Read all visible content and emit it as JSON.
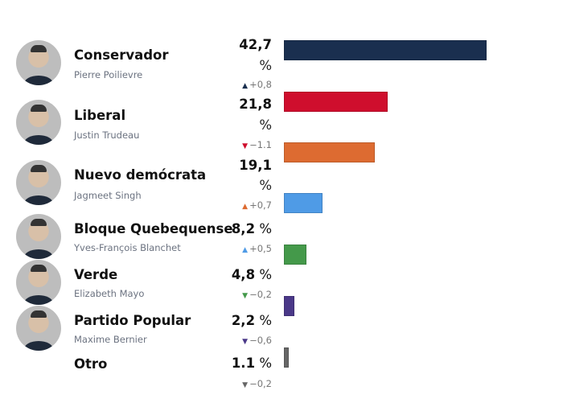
{
  "chart_data": {
    "type": "bar",
    "orientation": "horizontal",
    "unit": "%",
    "categories": [
      "Conservador",
      "Liberal",
      "Nuevo demócrata",
      "Bloque Quebequense",
      "Verde",
      "Partido Popular",
      "Otro"
    ],
    "rows": [
      {
        "party": "Conservador",
        "leader": "Pierre Poilievre",
        "value": 42.7,
        "value_label": "42,7",
        "change": "+0,8",
        "direction": "up",
        "color": "#1a2f4f"
      },
      {
        "party": "Liberal",
        "leader": "Justin Trudeau",
        "value": 21.8,
        "value_label": "21,8",
        "change": "−1.1",
        "direction": "down",
        "color": "#cf0e2d"
      },
      {
        "party": "Nuevo demócrata",
        "leader": "Jagmeet Singh",
        "value": 19.1,
        "value_label": "19,1",
        "change": "+0,7",
        "direction": "up",
        "color": "#dd6b31"
      },
      {
        "party": "Bloque Quebequense",
        "leader": "Yves-François Blanchet",
        "value": 8.2,
        "value_label": "8,2",
        "change": "+0,5",
        "direction": "up",
        "color": "#4f9be6"
      },
      {
        "party": "Verde",
        "leader": "Elizabeth Mayo",
        "value": 4.8,
        "value_label": "4,8",
        "change": "−0,2",
        "direction": "down",
        "color": "#44994a"
      },
      {
        "party": "Partido Popular",
        "leader": "Maxime Bernier",
        "value": 2.2,
        "value_label": "2,2",
        "change": "−0,6",
        "direction": "down",
        "color": "#4a3888"
      },
      {
        "party": "Otro",
        "leader": "",
        "value": 1.1,
        "value_label": "1.1",
        "change": "−0,2",
        "direction": "down",
        "color": "#666666"
      }
    ],
    "xlim": [
      0,
      42.7
    ],
    "grid": false
  }
}
